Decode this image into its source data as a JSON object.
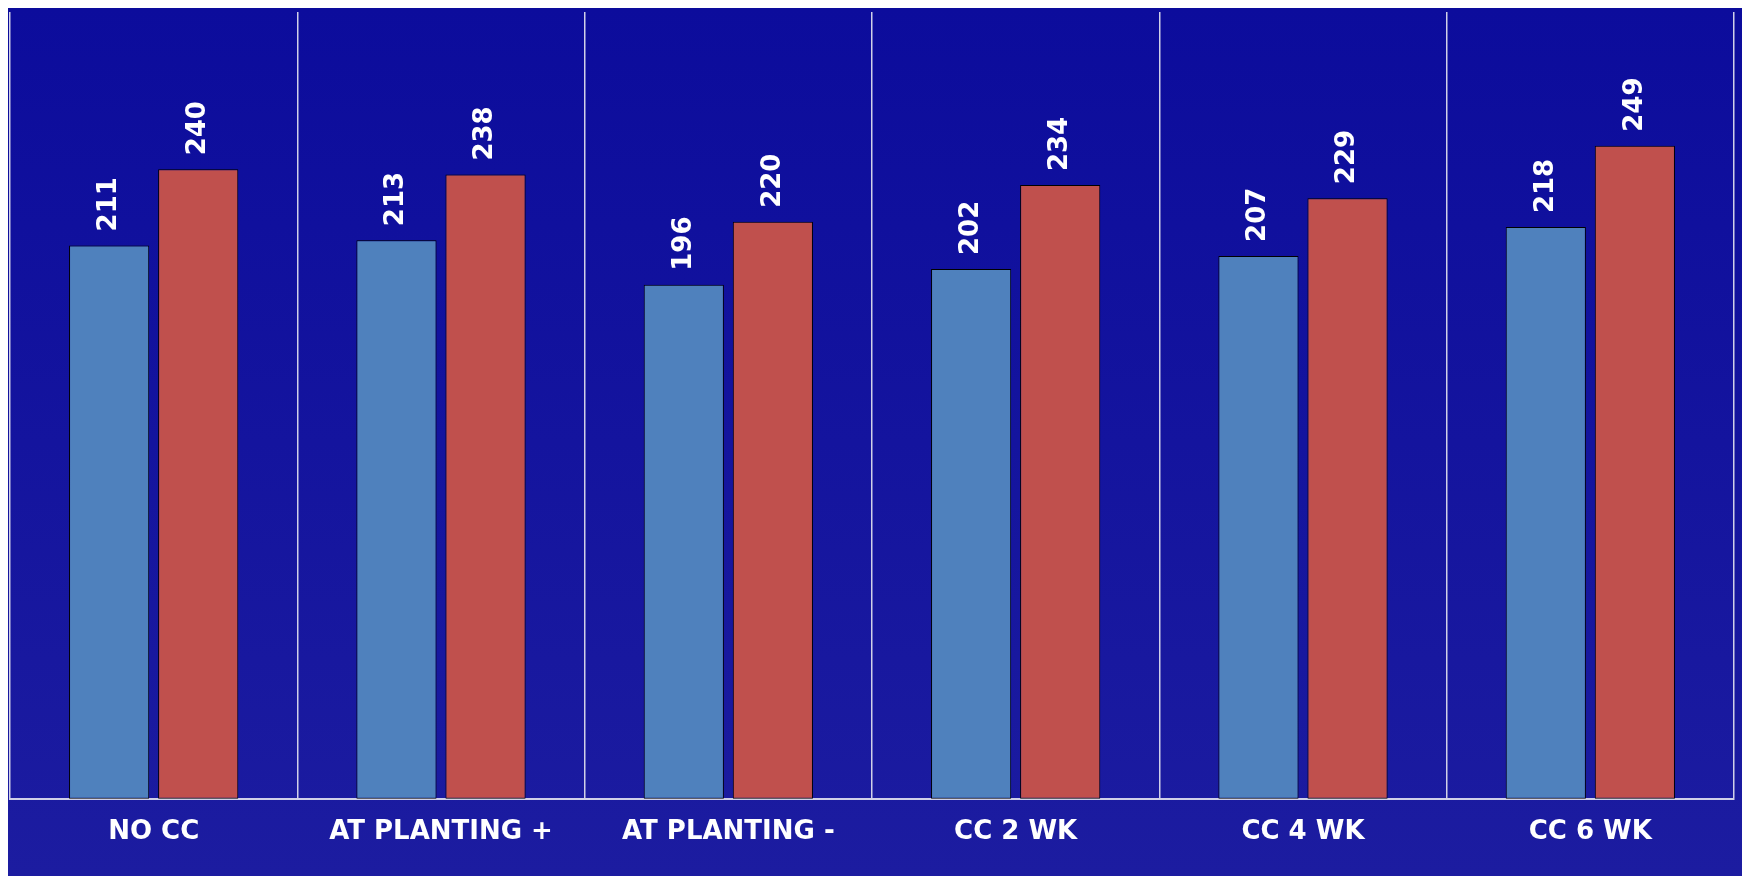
{
  "chart_data": {
    "type": "bar",
    "categories": [
      "NO CC",
      "AT PLANTING +",
      "AT PLANTING -",
      "CC 2 WK",
      "CC 4 WK",
      "CC 6 WK"
    ],
    "series": [
      {
        "color": "#4f81bd",
        "values": [
          211,
          213,
          196,
          202,
          207,
          218
        ]
      },
      {
        "color": "#c0504d",
        "values": [
          240,
          238,
          220,
          234,
          229,
          249
        ]
      }
    ],
    "data_labels": true,
    "grid": "x",
    "legend": false
  }
}
